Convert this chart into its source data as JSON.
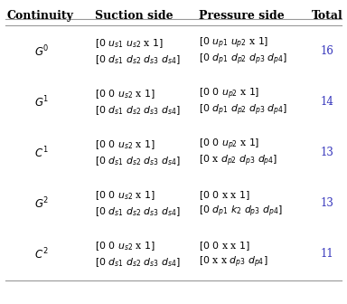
{
  "col_headers": [
    "Continuity",
    "Suction side",
    "Pressure side",
    "Total"
  ],
  "rows": [
    {
      "continuity": "$G^0$",
      "suction_line1": "$[0\\ u_{s1}\\ u_{s2}$ x $1]$",
      "suction_line2": "$[0\\ d_{s1}\\ d_{s2}\\ d_{s3}\\ d_{s4}]$",
      "pressure_line1": "$[0\\ u_{p1}\\ u_{p2}$ x $1]$",
      "pressure_line2": "$[0\\ d_{p1}\\ d_{p2}\\ d_{p3}\\ d_{p4}]$",
      "total": "16"
    },
    {
      "continuity": "$G^1$",
      "suction_line1": "$[0\\ 0\\ u_{s2}$ x $1]$",
      "suction_line2": "$[0\\ d_{s1}\\ d_{s2}\\ d_{s3}\\ d_{s4}]$",
      "pressure_line1": "$[0\\ 0\\ u_{p2}$ x $1]$",
      "pressure_line2": "$[0\\ d_{p1}\\ d_{p2}\\ d_{p3}\\ d_{p4}]$",
      "total": "14"
    },
    {
      "continuity": "$C^1$",
      "suction_line1": "$[0\\ 0\\ u_{s2}$ x $1]$",
      "suction_line2": "$[0\\ d_{s1}\\ d_{s2}\\ d_{s3}\\ d_{s4}]$",
      "pressure_line1": "$[0\\ 0\\ u_{p2}$ x $1]$",
      "pressure_line2": "$[0$ x $d_{p2}\\ d_{p3}\\ d_{p4}]$",
      "total": "13"
    },
    {
      "continuity": "$G^2$",
      "suction_line1": "$[0\\ 0\\ u_{s2}$ x $1]$",
      "suction_line2": "$[0\\ d_{s1}\\ d_{s2}\\ d_{s3}\\ d_{s4}]$",
      "pressure_line1": "$[0\\ 0$ x x $1]$",
      "pressure_line2": "$[0\\ d_{p1}\\ k_2\\ d_{p3}\\ d_{p4}]$",
      "total": "13"
    },
    {
      "continuity": "$C^2$",
      "suction_line1": "$[0\\ 0\\ u_{s2}$ x $1]$",
      "suction_line2": "$[0\\ d_{s1}\\ d_{s2}\\ d_{s3}\\ d_{s4}]$",
      "pressure_line1": "$[0\\ 0$ x x $1]$",
      "pressure_line2": "$[0$ x x $d_{p3}\\ d_{p4}]$",
      "total": "11"
    }
  ],
  "total_color": "#3333bb",
  "cell_text_color": "#000000",
  "bg_color": "#ffffff",
  "line_color": "#999999",
  "header_fontsize": 9.0,
  "cell_fontsize": 7.8,
  "cont_fontsize": 8.5,
  "total_fontsize": 8.5
}
